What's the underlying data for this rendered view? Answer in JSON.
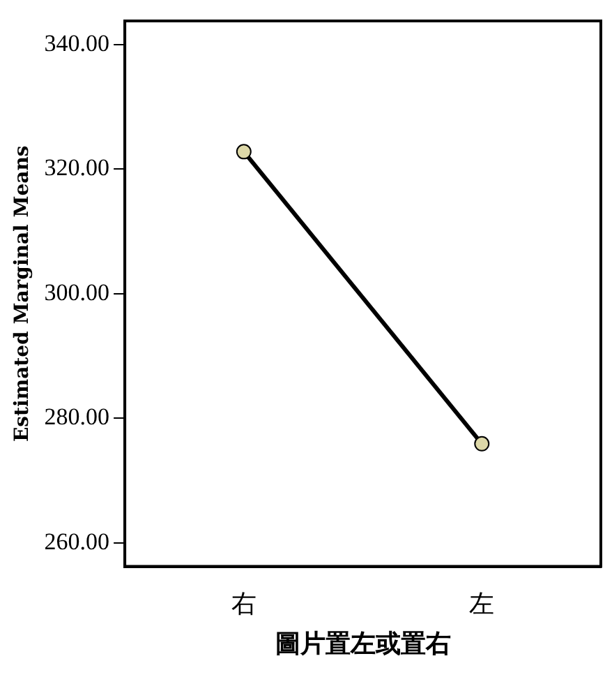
{
  "chart_data": {
    "type": "line",
    "xlabel": "圖片置左或置右",
    "ylabel": "Estimated Marginal Means",
    "categories": [
      "右",
      "左"
    ],
    "series": [
      {
        "color": "#000000",
        "values": [
          322.8,
          275.9
        ]
      }
    ],
    "ylim": [
      256.2,
      343.8
    ],
    "yticks": [
      {
        "value": 260,
        "label": "260.00"
      },
      {
        "value": 280,
        "label": "280.00"
      },
      {
        "value": 300,
        "label": "300.00"
      },
      {
        "value": 320,
        "label": "320.00"
      },
      {
        "value": 340,
        "label": "340.00"
      }
    ],
    "marker": "circle",
    "line_style": "solid",
    "grid": false,
    "legend": false
  }
}
